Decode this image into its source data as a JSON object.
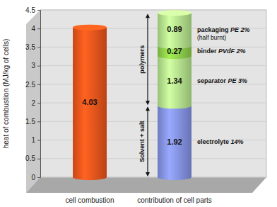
{
  "chart_data": {
    "type": "bar",
    "stacked": true,
    "data_labels": true,
    "grid": true,
    "y_label": "heat of combustion (MJ/kg of cells)",
    "categories": [
      "cell combustion",
      "contribution of cell parts"
    ],
    "ylim": [
      0,
      4.5
    ],
    "yticks": [
      0,
      0.5,
      1,
      1.5,
      2,
      2.5,
      3,
      3.5,
      4,
      4.5
    ],
    "series": [
      {
        "color": "#f0561c",
        "values": [
          4.03,
          null
        ]
      },
      {
        "name": "electrolyte",
        "detail": "14%",
        "color": "#8593e8",
        "values": [
          null,
          1.92
        ]
      },
      {
        "name": "separator",
        "detail": "PE 3%",
        "color": "#b6e88e",
        "values": [
          null,
          1.34
        ]
      },
      {
        "name": "binder",
        "detail": "PVdF 2%",
        "color": "#8fd04a",
        "values": [
          null,
          0.27
        ]
      },
      {
        "name": "packaging",
        "detail": "PE 2%",
        "note": "(half burnt)",
        "color": "#b6e88e",
        "values": [
          null,
          0.89
        ]
      }
    ],
    "groups": [
      {
        "label": "Solvent + salt",
        "series": [
          "electrolyte"
        ]
      },
      {
        "label": "polymers",
        "series": [
          "separator",
          "binder",
          "packaging"
        ]
      }
    ]
  }
}
